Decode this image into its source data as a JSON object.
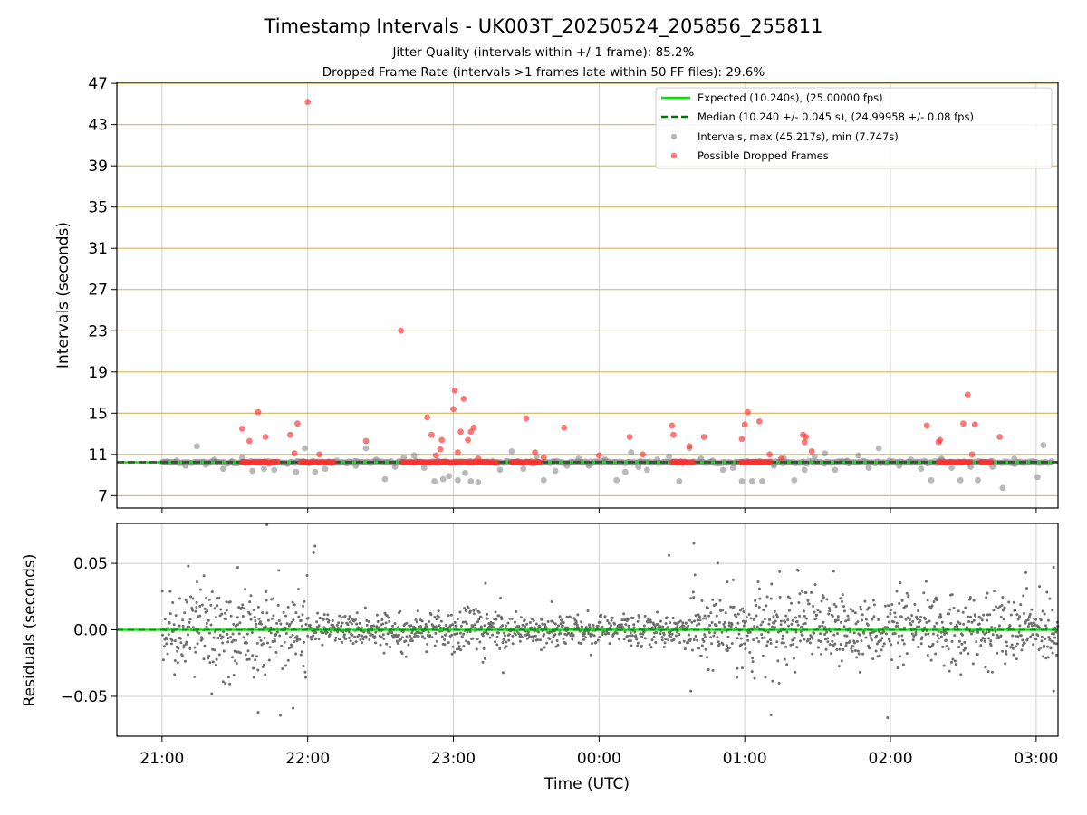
{
  "chart_data": [
    {
      "type": "scatter",
      "title": "Timestamp Intervals - UK003T_20250524_205856_255811",
      "subtitle_lines": [
        "Jitter Quality (intervals within +/-1 frame): 85.2%",
        "Dropped Frame Rate (intervals >1 frames late within 50 FF files): 29.6%"
      ],
      "ylabel": "Intervals (seconds)",
      "xlabel": "",
      "x_unit": "hours_utc_from_2025-05-24_00:00",
      "xlim": [
        20.69,
        27.15
      ],
      "ylim": [
        5.8,
        47.1
      ],
      "y_ticks": [
        7,
        11,
        15,
        19,
        23,
        27,
        31,
        35,
        39,
        43,
        47
      ],
      "x_ticks": [
        "21:00",
        "22:00",
        "23:00",
        "00:00",
        "01:00",
        "02:00",
        "03:00"
      ],
      "grid": true,
      "legend_position": "top-right",
      "expected_value": 10.24,
      "median_value": 10.24,
      "colors": {
        "expected": "#00e600",
        "median": "#007700",
        "intervals": "#808080",
        "dropped": "#ff3030",
        "hgrid": "#c8ab3e",
        "vgrid": "#cfcfcf"
      },
      "legend": [
        {
          "label": "Expected (10.240s), (25.00000 fps)",
          "kind": "line",
          "color": "#00e600"
        },
        {
          "label": "Median (10.240 +/- 0.045 s), (24.99958 +/- 0.08 fps)",
          "kind": "dashed",
          "color": "#007700"
        },
        {
          "label": "Intervals, max (45.217s), min (7.747s)",
          "kind": "dot",
          "color": "#808080"
        },
        {
          "label": "Possible Dropped Frames",
          "kind": "dot",
          "color": "#ff3030"
        }
      ],
      "series": [
        {
          "name": "Intervals, max (45.217s), min (7.747s)",
          "points": [
            [
              21.02,
              10.24
            ],
            [
              21.1,
              10.4
            ],
            [
              21.16,
              9.9
            ],
            [
              21.24,
              11.8
            ],
            [
              21.3,
              10.0
            ],
            [
              21.36,
              10.5
            ],
            [
              21.42,
              9.6
            ],
            [
              21.48,
              10.3
            ],
            [
              21.55,
              10.7
            ],
            [
              21.62,
              9.4
            ],
            [
              21.7,
              9.6
            ],
            [
              21.77,
              9.5
            ],
            [
              21.86,
              10.1
            ],
            [
              21.92,
              9.3
            ],
            [
              21.98,
              11.6
            ],
            [
              22.05,
              9.3
            ],
            [
              22.12,
              9.6
            ],
            [
              22.2,
              10.4
            ],
            [
              22.27,
              10.2
            ],
            [
              22.33,
              9.9
            ],
            [
              22.4,
              11.6
            ],
            [
              22.47,
              10.5
            ],
            [
              22.53,
              8.6
            ],
            [
              22.6,
              9.8
            ],
            [
              22.66,
              10.7
            ],
            [
              22.73,
              10.9
            ],
            [
              22.8,
              9.7
            ],
            [
              22.87,
              8.4
            ],
            [
              22.93,
              8.6
            ],
            [
              22.97,
              8.9
            ],
            [
              23.03,
              8.5
            ],
            [
              23.08,
              9.2
            ],
            [
              23.12,
              8.4
            ],
            [
              23.17,
              8.3
            ],
            [
              23.22,
              10.2
            ],
            [
              23.32,
              9.5
            ],
            [
              23.4,
              11.3
            ],
            [
              23.48,
              9.6
            ],
            [
              23.57,
              10.8
            ],
            [
              23.62,
              8.5
            ],
            [
              23.7,
              9.4
            ],
            [
              23.78,
              9.9
            ],
            [
              23.86,
              10.6
            ],
            [
              23.93,
              9.9
            ],
            [
              24.04,
              10.5
            ],
            [
              24.12,
              8.5
            ],
            [
              24.18,
              9.3
            ],
            [
              24.22,
              11.2
            ],
            [
              24.27,
              9.8
            ],
            [
              24.33,
              9.5
            ],
            [
              24.4,
              10.5
            ],
            [
              24.48,
              10.8
            ],
            [
              24.55,
              8.4
            ],
            [
              24.62,
              11.6
            ],
            [
              24.7,
              10.6
            ],
            [
              24.78,
              10.4
            ],
            [
              24.85,
              9.5
            ],
            [
              24.92,
              9.7
            ],
            [
              24.98,
              8.4
            ],
            [
              25.05,
              8.4
            ],
            [
              25.12,
              8.4
            ],
            [
              25.2,
              9.9
            ],
            [
              25.27,
              10.6
            ],
            [
              25.34,
              8.5
            ],
            [
              25.41,
              9.5
            ],
            [
              25.48,
              10.8
            ],
            [
              25.55,
              11.1
            ],
            [
              25.62,
              9.5
            ],
            [
              25.7,
              10.3
            ],
            [
              25.78,
              10.9
            ],
            [
              25.85,
              9.7
            ],
            [
              25.92,
              11.6
            ],
            [
              25.99,
              10.4
            ],
            [
              26.06,
              9.9
            ],
            [
              26.14,
              10.5
            ],
            [
              26.21,
              9.6
            ],
            [
              26.28,
              8.5
            ],
            [
              26.35,
              10.6
            ],
            [
              26.42,
              9.7
            ],
            [
              26.48,
              8.5
            ],
            [
              26.55,
              9.8
            ],
            [
              26.6,
              8.5
            ],
            [
              26.7,
              9.8
            ],
            [
              26.77,
              7.75
            ],
            [
              26.85,
              10.6
            ],
            [
              26.92,
              10.2
            ],
            [
              27.01,
              8.8
            ],
            [
              27.05,
              11.9
            ]
          ]
        },
        {
          "name": "Possible Dropped Frames",
          "points": [
            [
              21.55,
              13.5
            ],
            [
              21.6,
              12.3
            ],
            [
              21.66,
              15.1
            ],
            [
              21.71,
              12.7
            ],
            [
              21.88,
              12.9
            ],
            [
              21.91,
              11.1
            ],
            [
              21.93,
              14.0
            ],
            [
              22.08,
              11.0
            ],
            [
              22.4,
              12.3
            ],
            [
              22.64,
              23.0
            ],
            [
              22.0,
              45.2
            ],
            [
              22.82,
              14.6
            ],
            [
              22.85,
              12.9
            ],
            [
              22.88,
              10.9
            ],
            [
              22.91,
              11.5
            ],
            [
              22.92,
              12.4
            ],
            [
              23.0,
              15.4
            ],
            [
              23.01,
              17.2
            ],
            [
              23.03,
              11.2
            ],
            [
              23.05,
              13.2
            ],
            [
              23.07,
              16.4
            ],
            [
              23.1,
              12.4
            ],
            [
              23.12,
              13.2
            ],
            [
              23.14,
              13.6
            ],
            [
              23.17,
              10.6
            ],
            [
              23.5,
              14.5
            ],
            [
              23.56,
              11.2
            ],
            [
              23.62,
              10.7
            ],
            [
              23.76,
              13.6
            ],
            [
              24.0,
              10.9
            ],
            [
              24.21,
              12.7
            ],
            [
              24.3,
              11.0
            ],
            [
              24.5,
              13.8
            ],
            [
              24.51,
              12.9
            ],
            [
              24.62,
              11.8
            ],
            [
              24.72,
              12.7
            ],
            [
              24.98,
              12.5
            ],
            [
              25.0,
              13.9
            ],
            [
              25.02,
              15.1
            ],
            [
              25.1,
              14.2
            ],
            [
              25.17,
              11.0
            ],
            [
              25.25,
              10.6
            ],
            [
              25.4,
              12.9
            ],
            [
              25.41,
              12.2
            ],
            [
              25.42,
              12.7
            ],
            [
              25.46,
              11.3
            ],
            [
              26.25,
              13.8
            ],
            [
              26.33,
              12.2
            ],
            [
              26.34,
              12.4
            ],
            [
              26.5,
              14.0
            ],
            [
              26.53,
              16.8
            ],
            [
              26.56,
              11.0
            ],
            [
              26.58,
              13.9
            ],
            [
              26.75,
              12.7
            ]
          ],
          "clusters_at_expected": [
            [
              21.55,
              21.8
            ],
            [
              21.95,
              22.18
            ],
            [
              22.65,
              23.3
            ],
            [
              23.4,
              23.6
            ],
            [
              24.5,
              24.65
            ],
            [
              24.97,
              25.18
            ],
            [
              26.33,
              26.55
            ],
            [
              26.62,
              26.7
            ]
          ]
        }
      ]
    },
    {
      "type": "scatter",
      "title": "",
      "xlabel": "Time (UTC)",
      "ylabel": "Residuals (seconds)",
      "xlim": [
        20.69,
        27.15
      ],
      "ylim": [
        -0.08,
        0.08
      ],
      "y_tick_labels": [
        "−0.05",
        "0.00",
        "0.05"
      ],
      "y_tick_values": [
        -0.05,
        0.0,
        0.05
      ],
      "x_ticks": [
        "21:00",
        "22:00",
        "23:00",
        "00:00",
        "01:00",
        "02:00",
        "03:00"
      ],
      "grid": true,
      "zero_line_color": "#00e600",
      "point_color": "#6e6e6e",
      "series": [
        {
          "segments": [
            {
              "from": 21.0,
              "to": 22.0,
              "spread": 0.016
            },
            {
              "from": 22.0,
              "to": 22.95,
              "spread": 0.006
            },
            {
              "from": 22.95,
              "to": 23.35,
              "spread": 0.01
            },
            {
              "from": 23.35,
              "to": 24.6,
              "spread": 0.006
            },
            {
              "from": 24.6,
              "to": 25.55,
              "spread": 0.015
            },
            {
              "from": 25.55,
              "to": 26.0,
              "spread": 0.012
            },
            {
              "from": 26.0,
              "to": 27.15,
              "spread": 0.013
            }
          ],
          "points_per_hour": 300,
          "outliers": [
            [
              21.72,
              0.079
            ],
            [
              21.52,
              0.047
            ],
            [
              21.66,
              -0.062
            ],
            [
              21.9,
              -0.059
            ],
            [
              22.05,
              0.063
            ],
            [
              22.04,
              0.058
            ],
            [
              24.48,
              0.056
            ],
            [
              24.65,
              0.065
            ],
            [
              24.63,
              -0.046
            ],
            [
              25.18,
              -0.064
            ],
            [
              25.36,
              0.045
            ],
            [
              25.61,
              0.044
            ],
            [
              25.98,
              -0.066
            ],
            [
              26.93,
              0.043
            ],
            [
              27.12,
              0.047
            ],
            [
              27.12,
              -0.046
            ],
            [
              23.22,
              0.035
            ],
            [
              24.88,
              0.036
            ],
            [
              21.24,
              0.036
            ],
            [
              21.42,
              -0.039
            ]
          ]
        }
      ]
    }
  ]
}
